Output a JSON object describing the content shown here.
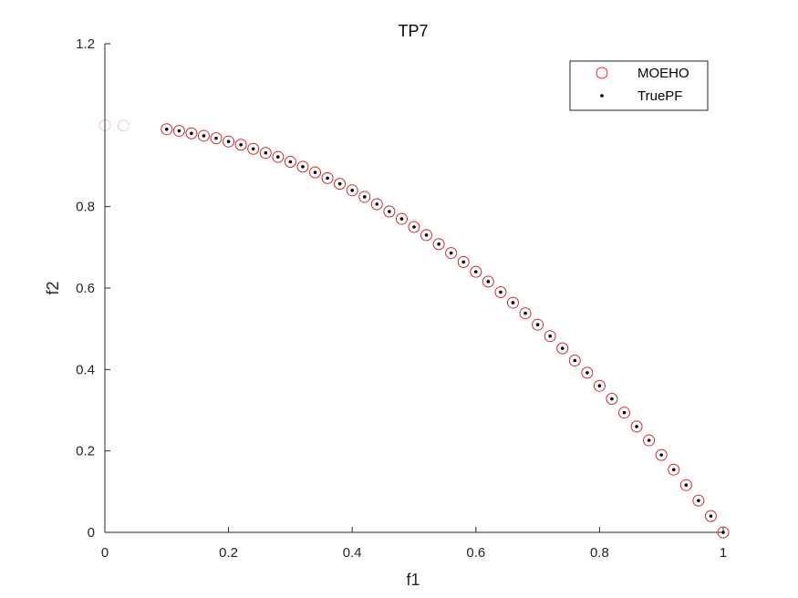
{
  "chart_data": {
    "type": "scatter",
    "title": "TP7",
    "xlabel": "f1",
    "ylabel": "f2",
    "xlim": [
      0,
      1
    ],
    "ylim": [
      0,
      1.2
    ],
    "xticks": [
      "0",
      "0.2",
      "0.4",
      "0.6",
      "0.8",
      "1"
    ],
    "yticks": [
      "0",
      "0.2",
      "0.4",
      "0.6",
      "0.8",
      "1.2"
    ],
    "ytick_values": [
      0,
      0.2,
      0.4,
      0.6,
      0.8,
      1.2
    ],
    "xtick_values": [
      0,
      0.2,
      0.4,
      0.6,
      0.8,
      1
    ],
    "grid": false,
    "legend_position": "top-right",
    "series": [
      {
        "name": "MOEHO",
        "marker": "open-circle",
        "color": "#d62728",
        "x": [
          0,
          0.03,
          0.1,
          0.12,
          0.14,
          0.16,
          0.18,
          0.2,
          0.22,
          0.24,
          0.26,
          0.28,
          0.3,
          0.32,
          0.34,
          0.36,
          0.38,
          0.4,
          0.42,
          0.44,
          0.46,
          0.48,
          0.5,
          0.52,
          0.54,
          0.56,
          0.58,
          0.6,
          0.62,
          0.64,
          0.66,
          0.68,
          0.7,
          0.72,
          0.74,
          0.76,
          0.78,
          0.8,
          0.82,
          0.84,
          0.86,
          0.88,
          0.9,
          0.92,
          0.94,
          0.96,
          0.98,
          1.0
        ],
        "y": [
          1.0,
          0.999,
          0.99,
          0.986,
          0.98,
          0.974,
          0.968,
          0.96,
          0.952,
          0.942,
          0.932,
          0.922,
          0.91,
          0.898,
          0.884,
          0.87,
          0.856,
          0.84,
          0.824,
          0.806,
          0.788,
          0.77,
          0.75,
          0.73,
          0.708,
          0.686,
          0.664,
          0.64,
          0.616,
          0.59,
          0.564,
          0.538,
          0.51,
          0.482,
          0.452,
          0.422,
          0.392,
          0.36,
          0.328,
          0.294,
          0.26,
          0.226,
          0.19,
          0.154,
          0.116,
          0.078,
          0.04,
          0.0
        ]
      },
      {
        "name": "TruePF",
        "marker": "dot",
        "color": "#000000",
        "x": [
          0.1,
          0.12,
          0.14,
          0.16,
          0.18,
          0.2,
          0.22,
          0.24,
          0.26,
          0.28,
          0.3,
          0.32,
          0.34,
          0.36,
          0.38,
          0.4,
          0.42,
          0.44,
          0.46,
          0.48,
          0.5,
          0.52,
          0.54,
          0.56,
          0.58,
          0.6,
          0.62,
          0.64,
          0.66,
          0.68,
          0.7,
          0.72,
          0.74,
          0.76,
          0.78,
          0.8,
          0.82,
          0.84,
          0.86,
          0.88,
          0.9,
          0.92,
          0.94,
          0.96,
          0.98,
          1.0
        ],
        "y": [
          0.99,
          0.986,
          0.98,
          0.974,
          0.968,
          0.96,
          0.952,
          0.942,
          0.932,
          0.922,
          0.91,
          0.898,
          0.884,
          0.87,
          0.856,
          0.84,
          0.824,
          0.806,
          0.788,
          0.77,
          0.75,
          0.73,
          0.708,
          0.686,
          0.664,
          0.64,
          0.616,
          0.59,
          0.564,
          0.538,
          0.51,
          0.482,
          0.452,
          0.422,
          0.392,
          0.36,
          0.328,
          0.294,
          0.26,
          0.226,
          0.19,
          0.154,
          0.116,
          0.078,
          0.04,
          0.0
        ]
      }
    ]
  },
  "legend": {
    "items": [
      "MOEHO",
      "TruePF"
    ]
  }
}
